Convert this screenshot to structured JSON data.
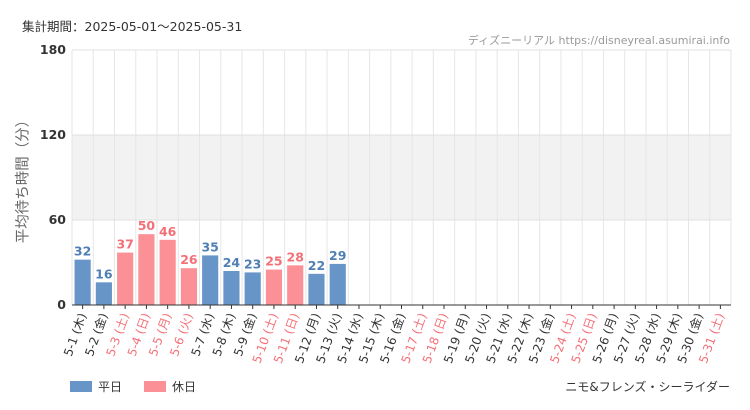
{
  "header": {
    "period": "集計期間：2025-05-01〜2025-05-31",
    "source": "ディズニーリアル https://disneyreal.asumirai.info"
  },
  "legend": {
    "weekday": "平日",
    "holiday": "休日"
  },
  "attraction": "ニモ&フレンズ・シーライダー",
  "colors": {
    "weekday": "#6795c8",
    "holiday": "#fb9196",
    "holiday_text": "#f47078",
    "weekday_text": "#4f7fb5"
  },
  "chart_data": {
    "type": "bar",
    "ylabel": "平均待ち時間（分）",
    "ylim": [
      0,
      180
    ],
    "yticks": [
      0,
      60,
      120,
      180
    ],
    "bands": [
      [
        60,
        120
      ]
    ],
    "grid": true,
    "legend_position": "bottom-left",
    "categories": [
      "5-1 (木)",
      "5-2 (金)",
      "5-3 (土)",
      "5-4 (日)",
      "5-5 (月)",
      "5-6 (火)",
      "5-7 (水)",
      "5-8 (木)",
      "5-9 (金)",
      "5-10 (土)",
      "5-11 (日)",
      "5-12 (月)",
      "5-13 (火)",
      "5-14 (水)",
      "5-15 (木)",
      "5-16 (金)",
      "5-17 (土)",
      "5-18 (日)",
      "5-19 (月)",
      "5-20 (火)",
      "5-21 (水)",
      "5-22 (木)",
      "5-23 (金)",
      "5-24 (土)",
      "5-25 (日)",
      "5-26 (月)",
      "5-27 (火)",
      "5-28 (水)",
      "5-29 (木)",
      "5-30 (金)",
      "5-31 (土)"
    ],
    "values": [
      32,
      16,
      37,
      50,
      46,
      26,
      35,
      24,
      23,
      25,
      28,
      22,
      29,
      null,
      null,
      null,
      null,
      null,
      null,
      null,
      null,
      null,
      null,
      null,
      null,
      null,
      null,
      null,
      null,
      null,
      null
    ],
    "holiday": [
      false,
      false,
      true,
      true,
      true,
      true,
      false,
      false,
      false,
      true,
      true,
      false,
      false,
      false,
      false,
      false,
      true,
      true,
      false,
      false,
      false,
      false,
      false,
      true,
      true,
      false,
      false,
      false,
      false,
      false,
      true
    ]
  }
}
